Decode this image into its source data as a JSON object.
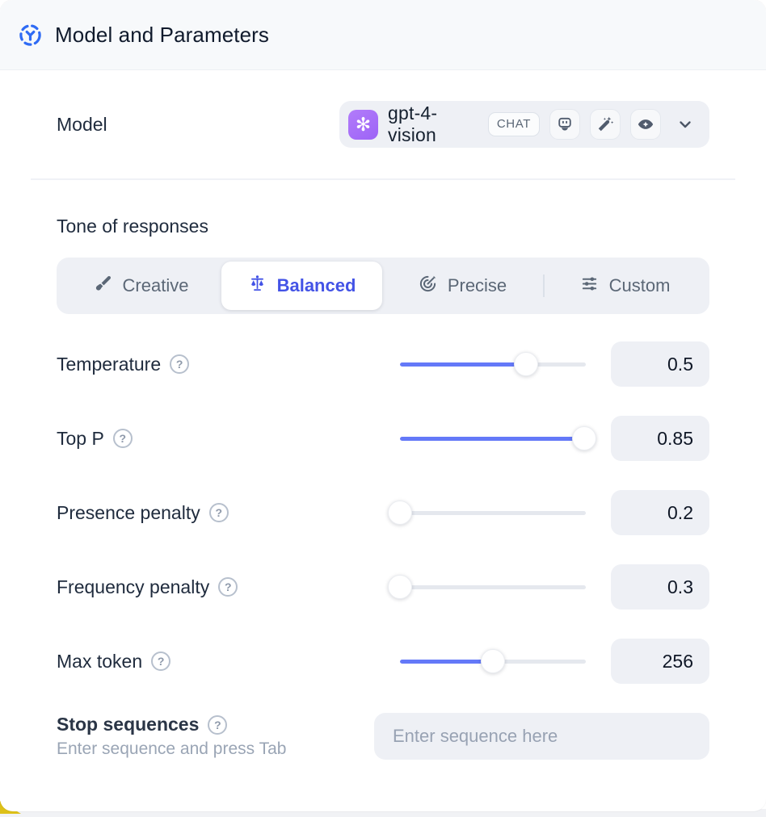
{
  "header": {
    "title": "Model and Parameters"
  },
  "model_row": {
    "label": "Model",
    "selected_model": "gpt-4-vision",
    "type_badge": "CHAT",
    "provider_glyph": "✻",
    "capabilities": [
      "chat-bot",
      "magic-wand",
      "vision-eye"
    ]
  },
  "tone": {
    "title": "Tone of responses",
    "selected": "Balanced",
    "options": [
      {
        "label": "Creative",
        "icon": "brush-icon"
      },
      {
        "label": "Balanced",
        "icon": "scale-icon"
      },
      {
        "label": "Precise",
        "icon": "target-icon"
      },
      {
        "label": "Custom",
        "icon": "sliders-icon"
      }
    ]
  },
  "parameters": [
    {
      "label": "Temperature",
      "value": "0.5",
      "fill_pct": 68
    },
    {
      "label": "Top P",
      "value": "0.85",
      "fill_pct": 99
    },
    {
      "label": "Presence penalty",
      "value": "0.2",
      "fill_pct": 0
    },
    {
      "label": "Frequency penalty",
      "value": "0.3",
      "fill_pct": 0
    },
    {
      "label": "Max token",
      "value": "256",
      "fill_pct": 50
    }
  ],
  "stop_sequences": {
    "label": "Stop sequences",
    "hint": "Enter sequence and press Tab",
    "placeholder": "Enter sequence here"
  },
  "help_glyph": "?",
  "colors": {
    "accent_blue": "#2f6bf4",
    "selected_indigo": "#4353e6",
    "slider_blue": "#6479f8",
    "control_bg": "#eef0f5",
    "header_bg": "#f7f9fb",
    "logo_purple": "#a06bf7",
    "corner_yellow": "#ddc018"
  }
}
